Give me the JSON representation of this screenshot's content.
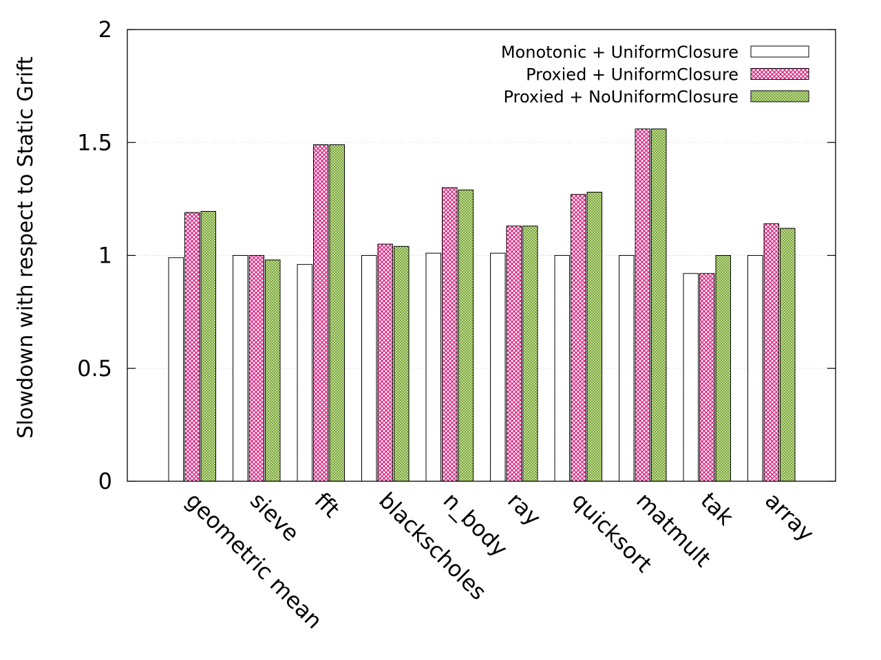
{
  "colors": {
    "monotonic": "#ffffff",
    "proxied_uniform": "#e0207f",
    "proxied_nouniform": "#6a9a2a",
    "grid": "#c0c0c0",
    "axis": "#000000"
  },
  "chart_data": {
    "type": "bar",
    "xlabel": "",
    "ylabel": "Slowdown with respect to Static Grift",
    "ylim": [
      0,
      2
    ],
    "yticks": [
      "0",
      "0.5",
      "1",
      "1.5",
      "2"
    ],
    "grid": "horizontal dotted",
    "legend_position": "top-right",
    "categories": [
      "geometric mean",
      "sieve",
      "fft",
      "blackscholes",
      "n_body",
      "ray",
      "quicksort",
      "matmult",
      "tak",
      "array"
    ],
    "series": [
      {
        "name": "Monotonic + UniformClosure",
        "pattern": "solid-white",
        "values": [
          0.99,
          1.0,
          0.96,
          1.0,
          1.01,
          1.01,
          1.0,
          1.0,
          0.92,
          1.0
        ]
      },
      {
        "name": "Proxied + UniformClosure",
        "pattern": "pink-crosshatch",
        "values": [
          1.19,
          1.0,
          1.49,
          1.05,
          1.3,
          1.13,
          1.27,
          1.56,
          0.92,
          1.14
        ]
      },
      {
        "name": "Proxied + NoUniformClosure",
        "pattern": "green-crosshatch",
        "values": [
          1.195,
          0.98,
          1.49,
          1.04,
          1.29,
          1.13,
          1.28,
          1.56,
          1.0,
          1.12
        ]
      }
    ]
  }
}
